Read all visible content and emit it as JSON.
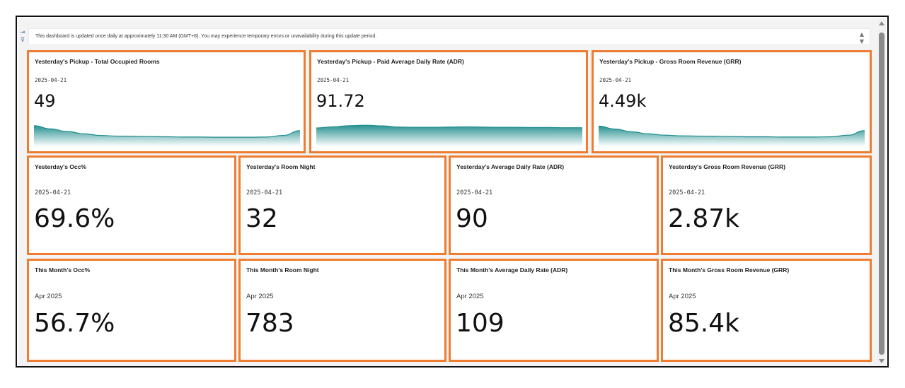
{
  "colors": {
    "accent_border": "#ee7d31",
    "spark_teal": "#1f8c8c"
  },
  "toolbar": {
    "collapse_icon": "collapse-panel-icon",
    "filter_icon": "filter-icon"
  },
  "notice": {
    "text": "This dashboard is updated once daily at approximately 11:30 AM (GMT+8). You may experience temporary errors or unavailability during this update period.",
    "scroll_icons": [
      "scroll-up-icon",
      "scroll-down-icon"
    ]
  },
  "pickup_cards": [
    {
      "title": "Yesterday's Pickup - Total Occupied Rooms",
      "date": "2025-04-21",
      "value": "49",
      "trend": [
        0.88,
        0.74,
        0.62,
        0.52,
        0.45,
        0.42,
        0.41,
        0.4,
        0.39,
        0.38,
        0.38,
        0.37,
        0.37,
        0.37,
        0.38,
        0.45,
        0.66
      ]
    },
    {
      "title": "Yesterday's Pickup - Paid Average Daily Rate (ADR)",
      "date": "2025-04-21",
      "value": "91.72",
      "trend": [
        0.78,
        0.83,
        0.88,
        0.9,
        0.87,
        0.82,
        0.81,
        0.81,
        0.82,
        0.83,
        0.82,
        0.81,
        0.81,
        0.8,
        0.8,
        0.79,
        0.79
      ]
    },
    {
      "title": "Yesterday's Pickup - Gross Room Revenue (GRR)",
      "date": "2025-04-21",
      "value": "4.49k",
      "trend": [
        0.86,
        0.73,
        0.61,
        0.52,
        0.46,
        0.43,
        0.42,
        0.41,
        0.4,
        0.39,
        0.39,
        0.38,
        0.38,
        0.38,
        0.39,
        0.46,
        0.66
      ]
    }
  ],
  "yesterday_cards": [
    {
      "title": "Yesterday's Occ%",
      "date": "2025-04-21",
      "value": "69.6%"
    },
    {
      "title": "Yesterday's Room Night",
      "date": "2025-04-21",
      "value": "32"
    },
    {
      "title": "Yesterday's Average Daily Rate (ADR)",
      "date": "2025-04-21",
      "value": "90"
    },
    {
      "title": "Yesterday's Gross Room Revenue (GRR)",
      "date": "2025-04-21",
      "value": "2.87k"
    }
  ],
  "month_cards": [
    {
      "title": "This Month's Occ%",
      "date": "Apr 2025",
      "value": "56.7%"
    },
    {
      "title": "This Month's Room Night",
      "date": "Apr 2025",
      "value": "783"
    },
    {
      "title": "This Month's Average Daily Rate (ADR)",
      "date": "Apr 2025",
      "value": "109"
    },
    {
      "title": "This Month's Gross Room Revenue (GRR)",
      "date": "Apr 2025",
      "value": "85.4k"
    }
  ]
}
